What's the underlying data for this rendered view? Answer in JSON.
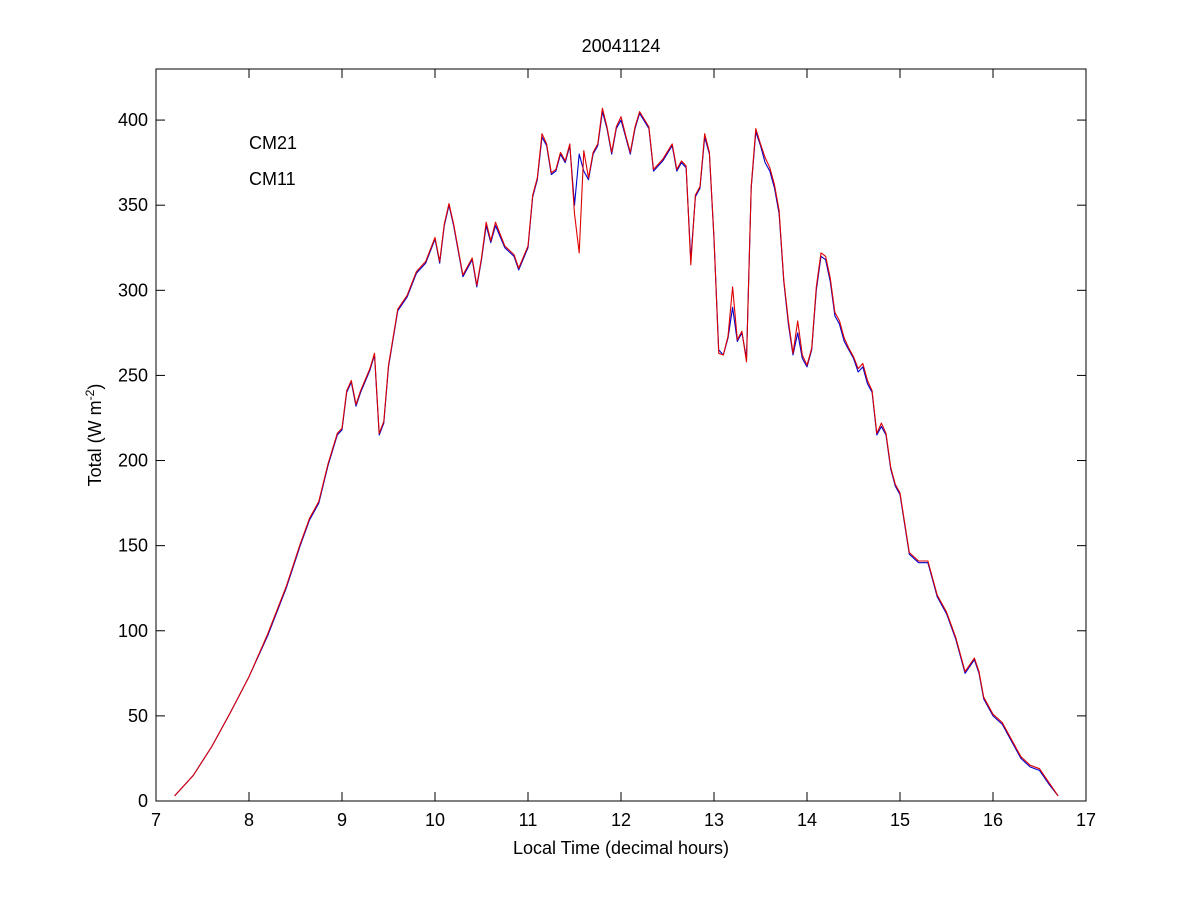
{
  "chart_data": {
    "type": "line",
    "title": "20041124",
    "xlabel": "Local Time (decimal hours)",
    "ylabel": "Total (W m",
    "ylabel_sup": "-2",
    "ylabel_end": ")",
    "xlim": [
      7,
      17
    ],
    "ylim": [
      0,
      430
    ],
    "xticks": [
      7,
      8,
      9,
      10,
      11,
      12,
      13,
      14,
      15,
      16,
      17
    ],
    "yticks": [
      0,
      50,
      100,
      150,
      200,
      250,
      300,
      350,
      400
    ],
    "grid": false,
    "legend_position": "top-left",
    "series": [
      {
        "name": "CM21",
        "color": "#0000cc",
        "points": [
          [
            7.2,
            3
          ],
          [
            7.4,
            15
          ],
          [
            7.6,
            32
          ],
          [
            7.8,
            52
          ],
          [
            8.0,
            73
          ],
          [
            8.2,
            97
          ],
          [
            8.4,
            125
          ],
          [
            8.55,
            150
          ],
          [
            8.65,
            165
          ],
          [
            8.75,
            175
          ],
          [
            8.85,
            197
          ],
          [
            8.95,
            215
          ],
          [
            9.0,
            218
          ],
          [
            9.05,
            240
          ],
          [
            9.1,
            246
          ],
          [
            9.15,
            232
          ],
          [
            9.2,
            240
          ],
          [
            9.3,
            253
          ],
          [
            9.35,
            262
          ],
          [
            9.4,
            215
          ],
          [
            9.45,
            222
          ],
          [
            9.5,
            255
          ],
          [
            9.6,
            288
          ],
          [
            9.7,
            296
          ],
          [
            9.8,
            310
          ],
          [
            9.9,
            316
          ],
          [
            10.0,
            330
          ],
          [
            10.05,
            316
          ],
          [
            10.1,
            338
          ],
          [
            10.15,
            350
          ],
          [
            10.2,
            338
          ],
          [
            10.3,
            308
          ],
          [
            10.4,
            318
          ],
          [
            10.45,
            302
          ],
          [
            10.5,
            318
          ],
          [
            10.55,
            338
          ],
          [
            10.6,
            328
          ],
          [
            10.65,
            338
          ],
          [
            10.75,
            325
          ],
          [
            10.85,
            320
          ],
          [
            10.9,
            312
          ],
          [
            11.0,
            325
          ],
          [
            11.05,
            355
          ],
          [
            11.1,
            365
          ],
          [
            11.15,
            390
          ],
          [
            11.2,
            385
          ],
          [
            11.25,
            368
          ],
          [
            11.3,
            370
          ],
          [
            11.35,
            380
          ],
          [
            11.4,
            375
          ],
          [
            11.45,
            385
          ],
          [
            11.5,
            350
          ],
          [
            11.55,
            380
          ],
          [
            11.6,
            370
          ],
          [
            11.65,
            365
          ],
          [
            11.7,
            380
          ],
          [
            11.75,
            385
          ],
          [
            11.8,
            405
          ],
          [
            11.85,
            395
          ],
          [
            11.9,
            380
          ],
          [
            11.95,
            395
          ],
          [
            12.0,
            400
          ],
          [
            12.05,
            390
          ],
          [
            12.1,
            380
          ],
          [
            12.15,
            395
          ],
          [
            12.2,
            404
          ],
          [
            12.3,
            395
          ],
          [
            12.35,
            370
          ],
          [
            12.45,
            376
          ],
          [
            12.55,
            385
          ],
          [
            12.6,
            370
          ],
          [
            12.65,
            375
          ],
          [
            12.7,
            372
          ],
          [
            12.75,
            318
          ],
          [
            12.8,
            355
          ],
          [
            12.85,
            360
          ],
          [
            12.9,
            390
          ],
          [
            12.95,
            380
          ],
          [
            13.0,
            330
          ],
          [
            13.05,
            265
          ],
          [
            13.1,
            262
          ],
          [
            13.15,
            272
          ],
          [
            13.2,
            290
          ],
          [
            13.25,
            270
          ],
          [
            13.3,
            275
          ],
          [
            13.35,
            260
          ],
          [
            13.4,
            360
          ],
          [
            13.45,
            393
          ],
          [
            13.5,
            385
          ],
          [
            13.55,
            375
          ],
          [
            13.6,
            370
          ],
          [
            13.65,
            360
          ],
          [
            13.7,
            345
          ],
          [
            13.75,
            305
          ],
          [
            13.8,
            280
          ],
          [
            13.85,
            262
          ],
          [
            13.9,
            275
          ],
          [
            13.95,
            260
          ],
          [
            14.0,
            255
          ],
          [
            14.05,
            265
          ],
          [
            14.1,
            300
          ],
          [
            14.15,
            320
          ],
          [
            14.2,
            318
          ],
          [
            14.25,
            305
          ],
          [
            14.3,
            285
          ],
          [
            14.35,
            280
          ],
          [
            14.4,
            270
          ],
          [
            14.45,
            265
          ],
          [
            14.5,
            260
          ],
          [
            14.55,
            252
          ],
          [
            14.6,
            255
          ],
          [
            14.65,
            245
          ],
          [
            14.7,
            240
          ],
          [
            14.75,
            215
          ],
          [
            14.8,
            220
          ],
          [
            14.85,
            215
          ],
          [
            14.9,
            195
          ],
          [
            14.95,
            185
          ],
          [
            15.0,
            180
          ],
          [
            15.1,
            145
          ],
          [
            15.2,
            140
          ],
          [
            15.3,
            140
          ],
          [
            15.4,
            120
          ],
          [
            15.5,
            110
          ],
          [
            15.6,
            95
          ],
          [
            15.7,
            75
          ],
          [
            15.8,
            83
          ],
          [
            15.85,
            75
          ],
          [
            15.9,
            60
          ],
          [
            16.0,
            50
          ],
          [
            16.1,
            45
          ],
          [
            16.2,
            35
          ],
          [
            16.3,
            25
          ],
          [
            16.4,
            20
          ],
          [
            16.5,
            18
          ],
          [
            16.6,
            10
          ],
          [
            16.7,
            3
          ]
        ]
      },
      {
        "name": "CM11",
        "color": "#dd0000",
        "points": [
          [
            7.2,
            3
          ],
          [
            7.4,
            15
          ],
          [
            7.6,
            32
          ],
          [
            7.8,
            52
          ],
          [
            8.0,
            73
          ],
          [
            8.2,
            98
          ],
          [
            8.4,
            126
          ],
          [
            8.55,
            151
          ],
          [
            8.65,
            166
          ],
          [
            8.75,
            176
          ],
          [
            8.85,
            198
          ],
          [
            8.95,
            216
          ],
          [
            9.0,
            219
          ],
          [
            9.05,
            241
          ],
          [
            9.1,
            247
          ],
          [
            9.15,
            233
          ],
          [
            9.2,
            241
          ],
          [
            9.3,
            254
          ],
          [
            9.35,
            263
          ],
          [
            9.4,
            216
          ],
          [
            9.45,
            223
          ],
          [
            9.5,
            256
          ],
          [
            9.6,
            289
          ],
          [
            9.7,
            297
          ],
          [
            9.8,
            311
          ],
          [
            9.9,
            317
          ],
          [
            10.0,
            331
          ],
          [
            10.05,
            317
          ],
          [
            10.1,
            339
          ],
          [
            10.15,
            351
          ],
          [
            10.2,
            339
          ],
          [
            10.3,
            309
          ],
          [
            10.4,
            319
          ],
          [
            10.45,
            303
          ],
          [
            10.5,
            319
          ],
          [
            10.55,
            340
          ],
          [
            10.6,
            329
          ],
          [
            10.65,
            340
          ],
          [
            10.75,
            326
          ],
          [
            10.85,
            321
          ],
          [
            10.9,
            313
          ],
          [
            11.0,
            326
          ],
          [
            11.05,
            356
          ],
          [
            11.1,
            366
          ],
          [
            11.15,
            392
          ],
          [
            11.2,
            386
          ],
          [
            11.25,
            369
          ],
          [
            11.3,
            371
          ],
          [
            11.35,
            381
          ],
          [
            11.4,
            376
          ],
          [
            11.45,
            386
          ],
          [
            11.5,
            345
          ],
          [
            11.55,
            322
          ],
          [
            11.6,
            382
          ],
          [
            11.65,
            366
          ],
          [
            11.7,
            381
          ],
          [
            11.75,
            386
          ],
          [
            11.8,
            407
          ],
          [
            11.85,
            396
          ],
          [
            11.9,
            381
          ],
          [
            11.95,
            396
          ],
          [
            12.0,
            402
          ],
          [
            12.05,
            391
          ],
          [
            12.1,
            381
          ],
          [
            12.15,
            396
          ],
          [
            12.2,
            405
          ],
          [
            12.3,
            396
          ],
          [
            12.35,
            371
          ],
          [
            12.45,
            377
          ],
          [
            12.55,
            386
          ],
          [
            12.6,
            371
          ],
          [
            12.65,
            376
          ],
          [
            12.7,
            373
          ],
          [
            12.75,
            315
          ],
          [
            12.8,
            356
          ],
          [
            12.85,
            361
          ],
          [
            12.9,
            392
          ],
          [
            12.95,
            381
          ],
          [
            13.0,
            331
          ],
          [
            13.05,
            263
          ],
          [
            13.1,
            262
          ],
          [
            13.15,
            273
          ],
          [
            13.2,
            302
          ],
          [
            13.25,
            271
          ],
          [
            13.3,
            276
          ],
          [
            13.35,
            258
          ],
          [
            13.4,
            361
          ],
          [
            13.45,
            395
          ],
          [
            13.5,
            386
          ],
          [
            13.55,
            378
          ],
          [
            13.6,
            372
          ],
          [
            13.65,
            362
          ],
          [
            13.7,
            347
          ],
          [
            13.75,
            306
          ],
          [
            13.8,
            282
          ],
          [
            13.85,
            263
          ],
          [
            13.9,
            282
          ],
          [
            13.95,
            262
          ],
          [
            14.0,
            256
          ],
          [
            14.05,
            266
          ],
          [
            14.1,
            302
          ],
          [
            14.15,
            322
          ],
          [
            14.2,
            320
          ],
          [
            14.25,
            307
          ],
          [
            14.3,
            287
          ],
          [
            14.35,
            282
          ],
          [
            14.4,
            272
          ],
          [
            14.45,
            266
          ],
          [
            14.5,
            261
          ],
          [
            14.55,
            254
          ],
          [
            14.6,
            257
          ],
          [
            14.65,
            247
          ],
          [
            14.7,
            241
          ],
          [
            14.75,
            216
          ],
          [
            14.8,
            222
          ],
          [
            14.85,
            216
          ],
          [
            14.9,
            196
          ],
          [
            14.95,
            186
          ],
          [
            15.0,
            181
          ],
          [
            15.1,
            146
          ],
          [
            15.2,
            141
          ],
          [
            15.3,
            141
          ],
          [
            15.4,
            121
          ],
          [
            15.5,
            111
          ],
          [
            15.6,
            96
          ],
          [
            15.7,
            76
          ],
          [
            15.8,
            84
          ],
          [
            15.85,
            76
          ],
          [
            15.9,
            61
          ],
          [
            16.0,
            51
          ],
          [
            16.1,
            46
          ],
          [
            16.2,
            36
          ],
          [
            16.3,
            26
          ],
          [
            16.4,
            21
          ],
          [
            16.5,
            19
          ],
          [
            16.6,
            11
          ],
          [
            16.7,
            3
          ]
        ]
      }
    ]
  }
}
